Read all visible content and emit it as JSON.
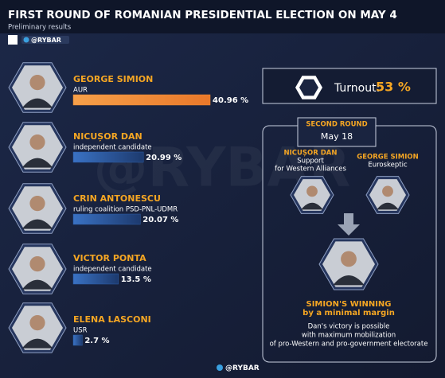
{
  "header": {
    "title": "FIRST ROUND OF ROMANIAN PRESIDENTIAL ELECTION ON MAY 4",
    "subtitle": "Preliminary results",
    "brand": "@RYBAR"
  },
  "chart_data": {
    "type": "bar",
    "categories": [
      "GEORGE SIMION",
      "NICUȘOR DAN",
      "CRIN ANTONESCU",
      "VICTOR PONTA",
      "ELENA LASCONI"
    ],
    "descriptions": [
      "AUR",
      "independent candidate",
      "ruling coalition PSD-PNL-UDMR",
      "independent candidate",
      "USR"
    ],
    "values": [
      40.96,
      20.99,
      20.07,
      13.5,
      2.7
    ],
    "value_labels": [
      "40.96 %",
      "20.99 %",
      "20.07 %",
      "13.5 %",
      "2.7 %"
    ],
    "colors": [
      "#f28a2e",
      "#2d5ea8",
      "#2d5ea8",
      "#2d5ea8",
      "#2d5ea8"
    ]
  },
  "turnout": {
    "label": "Turnout:",
    "value": 53,
    "value_label": "53 %"
  },
  "second_round": {
    "title": "SECOND ROUND",
    "date": "May 18",
    "candidates": [
      {
        "name": "NICUȘOR DAN",
        "description": [
          "Support",
          "for Western Alliances"
        ]
      },
      {
        "name": "GEORGE SIMION",
        "description": [
          "Euroskeptic"
        ]
      }
    ],
    "verdict": [
      "SIMION'S WINNING",
      "by a minimal margin"
    ],
    "note": [
      "Dan's victory is possible",
      "with maximum mobilization",
      "of pro-Western and pro-government electorate"
    ]
  }
}
